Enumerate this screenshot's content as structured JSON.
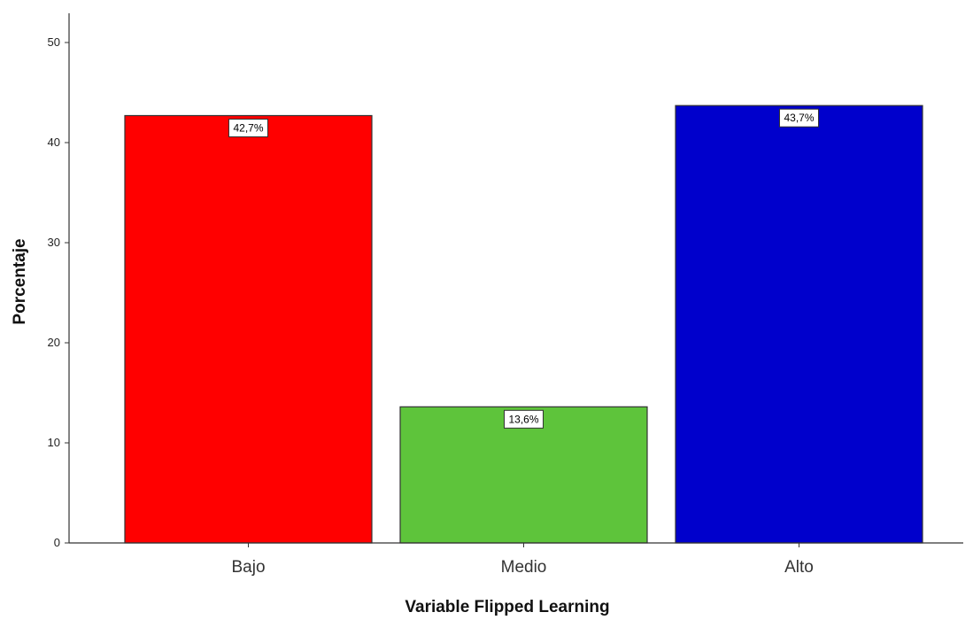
{
  "chart_data": {
    "type": "bar",
    "title": "",
    "xlabel": "Variable Flipped Learning",
    "ylabel": "Porcentaje",
    "categories": [
      "Bajo",
      "Medio",
      "Alto"
    ],
    "values": [
      42.7,
      13.6,
      43.7
    ],
    "data_labels": [
      "42,7%",
      "13,6%",
      "43,7%"
    ],
    "colors": [
      "#ff0000",
      "#5ec43b",
      "#0000cc"
    ],
    "ylim": [
      0,
      50
    ],
    "yticks": [
      0,
      10,
      20,
      30,
      40,
      50
    ],
    "grid": false,
    "legend": false
  }
}
